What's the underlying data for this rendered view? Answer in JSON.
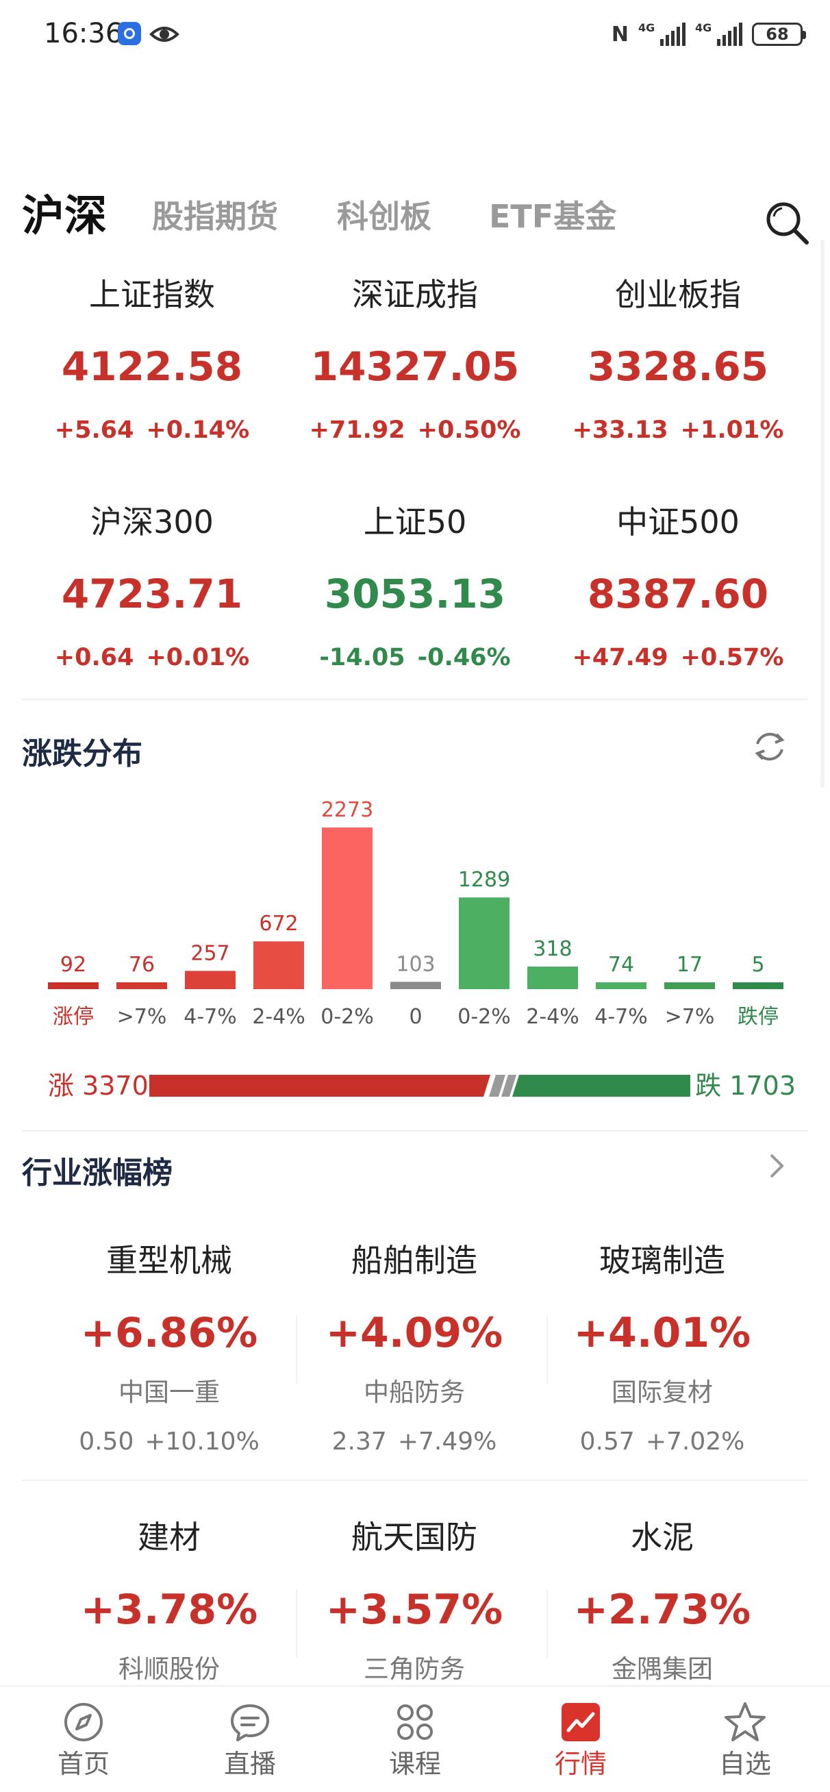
{
  "status_bar": {
    "time": "16:36",
    "network": "4G",
    "battery": "68"
  },
  "tabs": [
    {
      "label": "沪深",
      "active": true
    },
    {
      "label": "股指期货",
      "active": false
    },
    {
      "label": "科创板",
      "active": false
    },
    {
      "label": "ETF基金",
      "active": false
    }
  ],
  "indices": [
    {
      "name": "上证指数",
      "value": "4122.58",
      "change": "+5.64",
      "pct": "+0.14%",
      "trend": "up"
    },
    {
      "name": "深证成指",
      "value": "14327.05",
      "change": "+71.92",
      "pct": "+0.50%",
      "trend": "up"
    },
    {
      "name": "创业板指",
      "value": "3328.65",
      "change": "+33.13",
      "pct": "+1.01%",
      "trend": "up"
    },
    {
      "name": "沪深300",
      "value": "4723.71",
      "change": "+0.64",
      "pct": "+0.01%",
      "trend": "up"
    },
    {
      "name": "上证50",
      "value": "3053.13",
      "change": "-14.05",
      "pct": "-0.46%",
      "trend": "down"
    },
    {
      "name": "中证500",
      "value": "8387.60",
      "change": "+47.49",
      "pct": "+0.57%",
      "trend": "up"
    }
  ],
  "distribution": {
    "title": "涨跌分布",
    "up_label": "涨 3370",
    "down_label": "跌 1703",
    "up_total": 3370,
    "down_total": 1703,
    "colors": {
      "limit_up": "#c8302a",
      "up_dark": "#e04a3f",
      "up_mid": "#ec5a50",
      "up_light": "#fb6460",
      "flat": "#8a8a8a",
      "down": "#4daf62",
      "limit_down": "#2f8a4c"
    }
  },
  "chart_data": {
    "type": "bar",
    "title": "",
    "categories": [
      "涨停",
      ">7%",
      "4-7%",
      "2-4%",
      "0-2%",
      "0",
      "0-2%",
      "2-4%",
      "4-7%",
      ">7%",
      "跌停"
    ],
    "values": [
      92,
      76,
      257,
      672,
      2273,
      103,
      1289,
      318,
      74,
      17,
      5
    ],
    "bar_colors": [
      "#c8302a",
      "#d3392f",
      "#dc4238",
      "#e84d44",
      "#fb6460",
      "#8a8a8a",
      "#4daf62",
      "#4daf62",
      "#4daf62",
      "#3f9d56",
      "#2f8a4c"
    ],
    "label_colors": [
      "#c8302a",
      "#c8302a",
      "#c8302a",
      "#c8302a",
      "#e04a3f",
      "#8a8a8a",
      "#2f8a4c",
      "#2f8a4c",
      "#2f8a4c",
      "#2f8a4c",
      "#2f8a4c"
    ],
    "ylim": [
      0,
      2273
    ],
    "grid": false
  },
  "industry": {
    "title": "行业涨幅榜",
    "items": [
      {
        "name": "重型机械",
        "pct": "+6.86%",
        "stock": "中国一重",
        "price": "0.50",
        "stock_pct": "+10.10%"
      },
      {
        "name": "船舶制造",
        "pct": "+4.09%",
        "stock": "中船防务",
        "price": "2.37",
        "stock_pct": "+7.49%"
      },
      {
        "name": "玻璃制造",
        "pct": "+4.01%",
        "stock": "国际复材",
        "price": "0.57",
        "stock_pct": "+7.02%"
      },
      {
        "name": "建材",
        "pct": "+3.78%",
        "stock": "科顺股份"
      },
      {
        "name": "航天国防",
        "pct": "+3.57%",
        "stock": "三角防务"
      },
      {
        "name": "水泥",
        "pct": "+2.73%",
        "stock": "金隅集团"
      }
    ]
  },
  "bottom_nav": [
    {
      "label": "首页",
      "icon": "compass-icon",
      "active": false
    },
    {
      "label": "直播",
      "icon": "chat-bubble-icon",
      "active": false
    },
    {
      "label": "课程",
      "icon": "grid-clover-icon",
      "active": false
    },
    {
      "label": "行情",
      "icon": "market-chart-icon",
      "active": true
    },
    {
      "label": "自选",
      "icon": "star-icon",
      "active": false
    }
  ]
}
